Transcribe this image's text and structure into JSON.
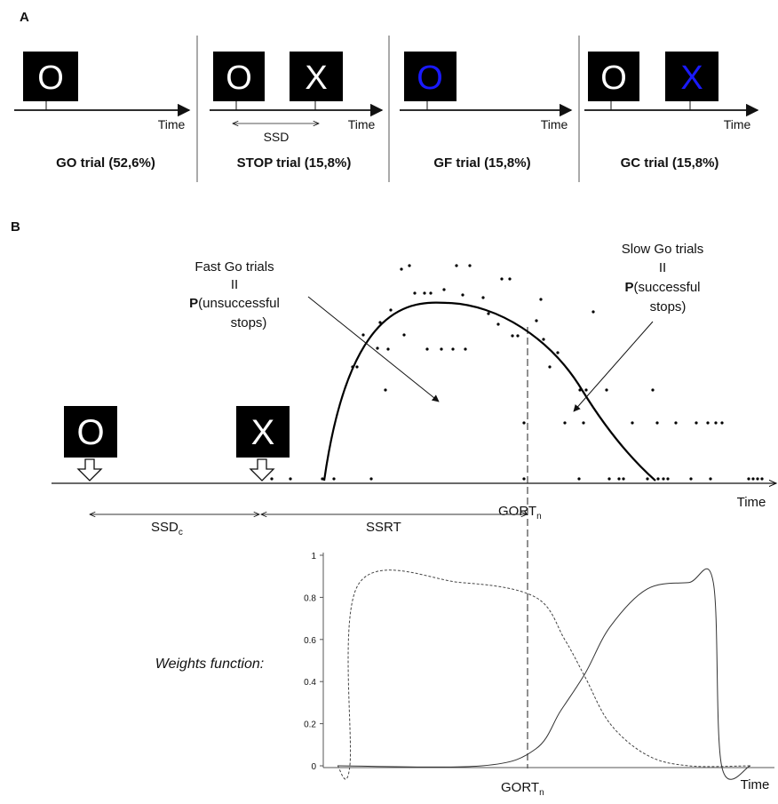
{
  "panel_a": {
    "label": "A",
    "trials": [
      {
        "stimuli": [
          "O"
        ],
        "stimulus_colors": [
          "#ffffff"
        ],
        "ssd_label": "",
        "time_label": "Time",
        "caption": "GO trial (52,6%)"
      },
      {
        "stimuli": [
          "O",
          "X"
        ],
        "stimulus_colors": [
          "#ffffff",
          "#ffffff"
        ],
        "ssd_label": "SSD",
        "time_label": "Time",
        "caption": "STOP trial (15,8%)"
      },
      {
        "stimuli": [
          "O"
        ],
        "stimulus_colors": [
          "#1a1aff"
        ],
        "ssd_label": "",
        "time_label": "Time",
        "caption": "GF trial (15,8%)"
      },
      {
        "stimuli": [
          "O",
          "X"
        ],
        "stimulus_colors": [
          "#ffffff",
          "#1a1aff"
        ],
        "ssd_label": "",
        "time_label": "Time",
        "caption": "GC trial (15,8%)"
      }
    ]
  },
  "panel_b": {
    "label": "B",
    "go_stimulus": "O",
    "stop_stimulus": "X",
    "fast_go": {
      "line1": "Fast Go trials",
      "line2": "II",
      "line3_bold": "P",
      "line3": "(unsuccessful",
      "line4": "stops)"
    },
    "slow_go": {
      "line1": "Slow Go trials",
      "line2": "II",
      "line3_bold": "P",
      "line3": "(successful",
      "line4": "stops)"
    },
    "gort_label": "GORT",
    "gort_sub": "n",
    "time_label": "Time",
    "ssd_label": "SSD",
    "ssd_sub": "c",
    "ssrt_label": "SSRT"
  },
  "chart_data": {
    "type": "line",
    "title": "Weights function:",
    "xlabel": "Time",
    "ylabel": "",
    "ylim": [
      0,
      1
    ],
    "yticks": [
      "0",
      "0.2",
      "0.4",
      "0.6",
      "0.8",
      "1"
    ],
    "x_marker_label": "GORT",
    "x_marker_sub": "n",
    "series": [
      {
        "style": "dashed",
        "description_points": [
          [
            0.0,
            0.0
          ],
          [
            0.03,
            0.0
          ],
          [
            0.05,
            0.86
          ],
          [
            0.3,
            0.87
          ],
          [
            0.48,
            0.8
          ],
          [
            0.55,
            0.6
          ],
          [
            0.6,
            0.42
          ],
          [
            0.66,
            0.2
          ],
          [
            0.75,
            0.05
          ],
          [
            0.85,
            0.0
          ],
          [
            1.0,
            0.0
          ]
        ]
      },
      {
        "style": "solid",
        "description_points": [
          [
            0.0,
            0.0
          ],
          [
            0.35,
            0.0
          ],
          [
            0.48,
            0.08
          ],
          [
            0.54,
            0.26
          ],
          [
            0.6,
            0.44
          ],
          [
            0.66,
            0.66
          ],
          [
            0.75,
            0.84
          ],
          [
            0.85,
            0.87
          ],
          [
            0.91,
            0.87
          ],
          [
            0.93,
            0.0
          ],
          [
            1.0,
            0.0
          ]
        ]
      }
    ]
  }
}
